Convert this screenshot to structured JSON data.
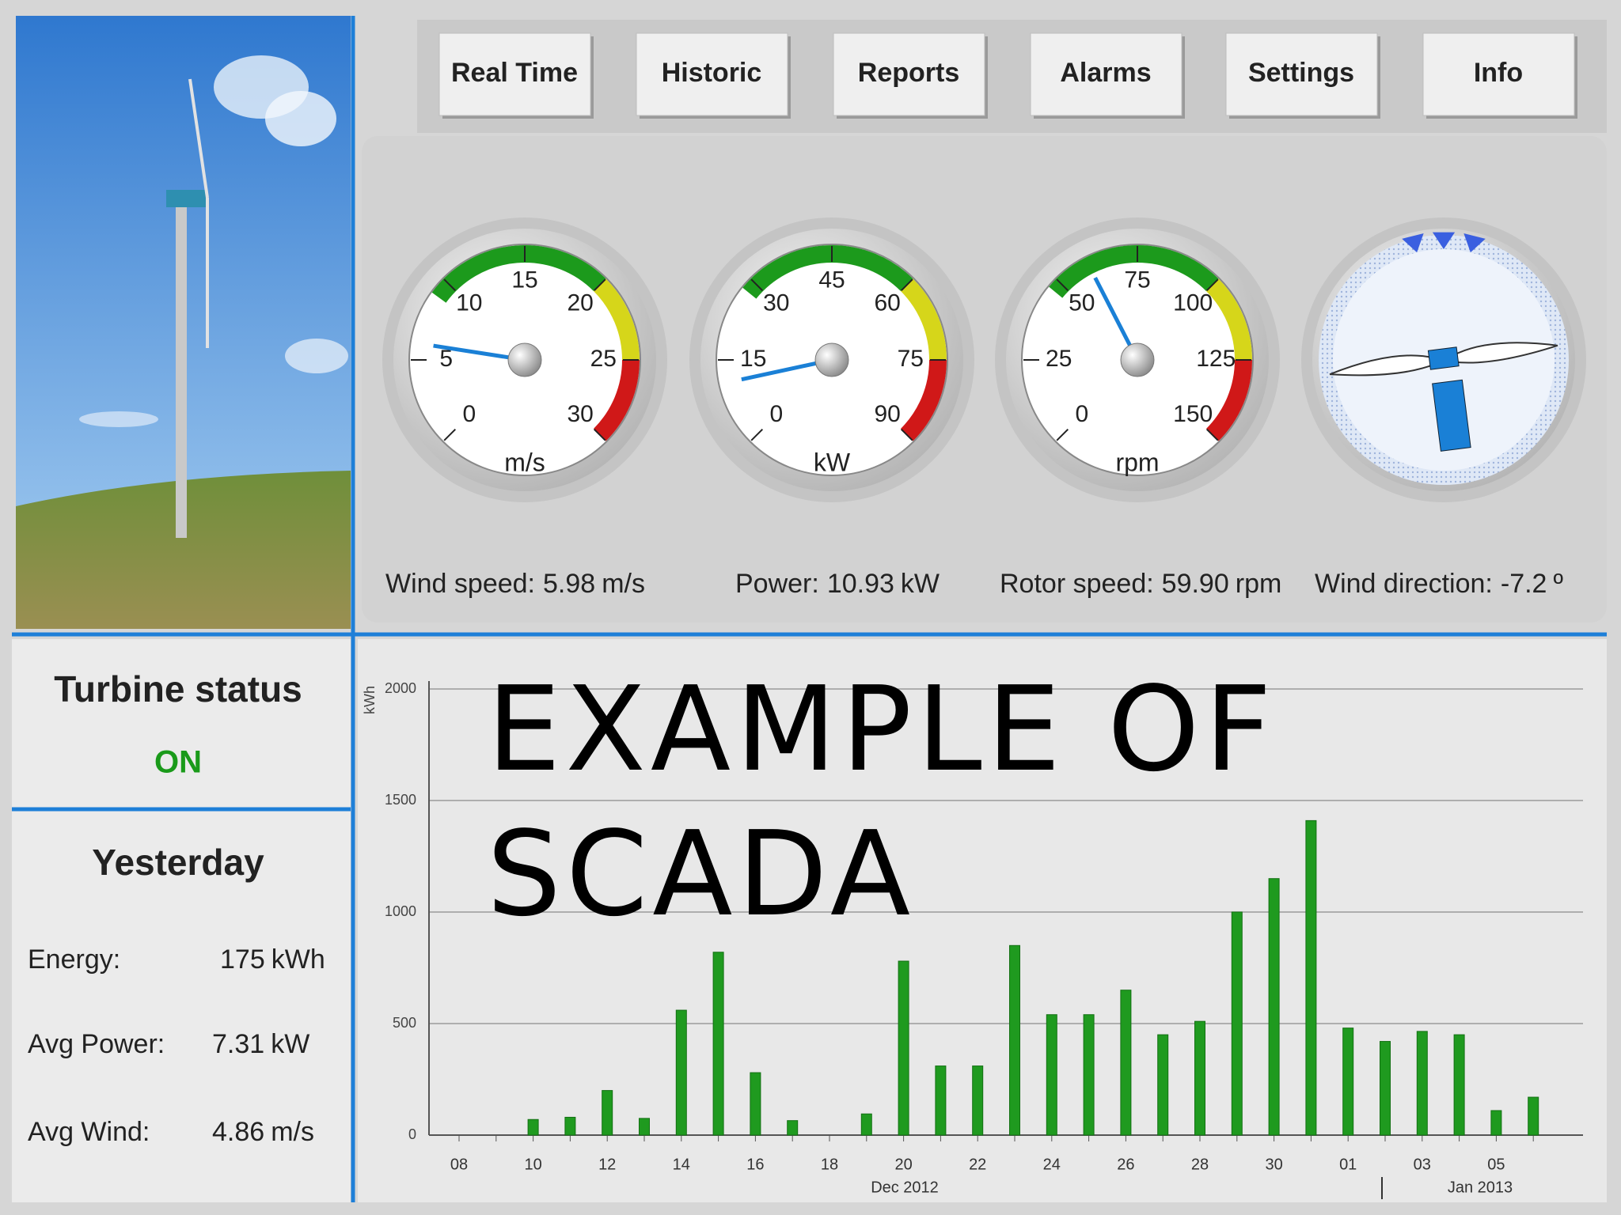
{
  "nav": [
    "Real Time",
    "Historic",
    "Reports",
    "Alarms",
    "Settings",
    "Info"
  ],
  "gauges": [
    {
      "type": "dial",
      "unit": "m/s",
      "range": [
        0,
        30
      ],
      "ticks": [
        0,
        5,
        10,
        15,
        20,
        25,
        30
      ],
      "zones": [
        {
          "from": 9,
          "to": 20,
          "color": "#1c9a1c"
        },
        {
          "from": 20,
          "to": 25,
          "color": "#d6d61a"
        },
        {
          "from": 25,
          "to": 30,
          "color": "#d01818"
        }
      ],
      "readout": {
        "label": "Wind speed:",
        "value": 5.98,
        "unit": "m/s"
      }
    },
    {
      "type": "dial",
      "unit": "kW",
      "range": [
        0,
        90
      ],
      "ticks": [
        0,
        15,
        30,
        45,
        60,
        75,
        90
      ],
      "zones": [
        {
          "from": 28,
          "to": 60,
          "color": "#1c9a1c"
        },
        {
          "from": 60,
          "to": 75,
          "color": "#d6d61a"
        },
        {
          "from": 75,
          "to": 90,
          "color": "#d01818"
        }
      ],
      "readout": {
        "label": "Power:",
        "value": 10.93,
        "unit": "kW"
      }
    },
    {
      "type": "dial",
      "unit": "rpm",
      "range": [
        0,
        150
      ],
      "ticks": [
        0,
        25,
        50,
        75,
        100,
        125,
        150
      ],
      "zones": [
        {
          "from": 47,
          "to": 100,
          "color": "#1c9a1c"
        },
        {
          "from": 100,
          "to": 125,
          "color": "#d6d61a"
        },
        {
          "from": 125,
          "to": 150,
          "color": "#d01818"
        }
      ],
      "readout": {
        "label": "Rotor speed:",
        "value": 59.9,
        "value_label": "59.90",
        "unit": "rpm"
      }
    },
    {
      "type": "compass",
      "readout": {
        "label": "Wind direction:",
        "value": -7.2,
        "unit": "º"
      }
    }
  ],
  "status": {
    "title": "Turbine status",
    "value": "ON"
  },
  "yesterday": {
    "title": "Yesterday",
    "rows": [
      {
        "label": "Energy:",
        "value": 175,
        "unit": "kWh"
      },
      {
        "label": "Avg Power:",
        "value": 7.31,
        "unit": "kW"
      },
      {
        "label": "Avg Wind:",
        "value": 4.86,
        "unit": "m/s"
      }
    ]
  },
  "overlay_title": [
    "EXAMPLE OF",
    "SCADA"
  ],
  "chart_data": {
    "type": "bar",
    "y_label": "kWh",
    "categories": [
      "08",
      null,
      "10",
      null,
      "12",
      null,
      "14",
      null,
      "16",
      null,
      "18",
      null,
      "20",
      null,
      "22",
      null,
      "24",
      null,
      "26",
      null,
      "28",
      null,
      "30",
      null,
      "01",
      null,
      "03",
      null,
      "05",
      null
    ],
    "values": [
      0,
      0,
      70,
      80,
      200,
      75,
      560,
      820,
      280,
      65,
      0,
      95,
      780,
      310,
      310,
      850,
      540,
      540,
      650,
      450,
      510,
      1000,
      1150,
      1410,
      480,
      420,
      465,
      450,
      110,
      170
    ],
    "color": "#1f9a1f",
    "ylim": [
      0,
      2000
    ],
    "yticks": [
      0,
      500,
      1000,
      1500,
      2000
    ],
    "grid": true,
    "x_groups": [
      "Dec 2012",
      "Jan 2013"
    ]
  }
}
